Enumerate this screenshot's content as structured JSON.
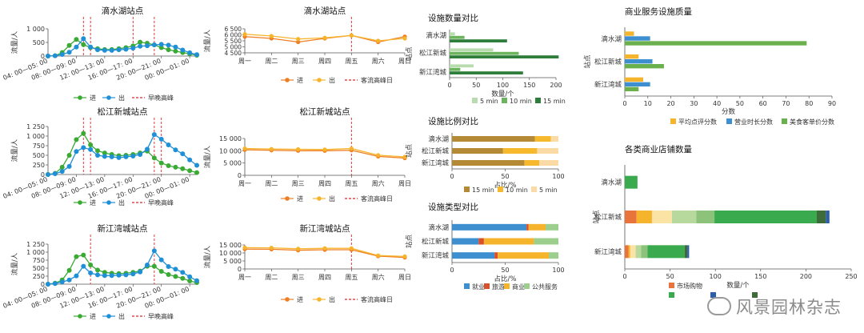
{
  "colors": {
    "in": "#3aaa35",
    "out": "#1f8fd6",
    "peak": "#d9262c",
    "orange_in": "#ef7d22",
    "orange_out": "#f6b42c",
    "min5": "#b8dcae",
    "min10": "#6cb45e",
    "min15": "#2e7d3a",
    "sh15": "#b58a37",
    "sh10": "#f6b92e",
    "sh5": "#fbdaa6",
    "employ": "#3d8fd0",
    "travel": "#d8502a",
    "commerce": "#f6b42c",
    "public": "#9ccf8d",
    "rating": "#f6b42c",
    "hours": "#3d8fd0",
    "price": "#6ab04c"
  },
  "watermark": "风景园林杂志",
  "legends": {
    "in": "进",
    "out": "出",
    "peak_flow": "早晚高峰",
    "peak_day": "客流高峰日",
    "min5": "5 min",
    "min10": "10 min",
    "min15": "15 min",
    "employ": "就业",
    "travel": "旅游",
    "commerce": "商业",
    "public": "公共服务",
    "rating": "平均点评分数",
    "hours": "营业时长分数",
    "price": "美食客单价分数",
    "shop_partial": "市场购物"
  },
  "chart_data": [
    {
      "id": "h1",
      "type": "line",
      "title": "滴水湖站点",
      "ylabel": "流量/人",
      "ylim": [
        0,
        1000
      ],
      "yticks": [
        {
          "v": 0,
          "t": "0"
        },
        {
          "v": 500,
          "t": "500"
        },
        {
          "v": 1000,
          "t": "1 000"
        }
      ],
      "xticks": [
        "04: 00—05: 00",
        "08: 00—09: 00",
        "12: 00—13: 00",
        "16: 00—17: 00",
        "20: 00—21: 00",
        "00: 00—01: 00"
      ],
      "series": [
        {
          "name": "进",
          "values": [
            0,
            10,
            130,
            390,
            610,
            420,
            310,
            270,
            240,
            240,
            270,
            310,
            370,
            510,
            470,
            410,
            310,
            230,
            180,
            130,
            80,
            30
          ]
        },
        {
          "name": "出",
          "values": [
            0,
            10,
            60,
            140,
            330,
            640,
            330,
            230,
            210,
            210,
            230,
            250,
            290,
            360,
            380,
            410,
            430,
            400,
            330,
            220,
            120,
            50
          ]
        }
      ],
      "peaks": [
        5,
        6,
        12,
        15
      ]
    },
    {
      "id": "h2",
      "type": "line",
      "title": "松江新城站点",
      "ylabel": "流量/人",
      "ylim": [
        0,
        1250
      ],
      "yticks": [
        {
          "v": 0,
          "t": "0"
        },
        {
          "v": 250,
          "t": "250"
        },
        {
          "v": 500,
          "t": "500"
        },
        {
          "v": 750,
          "t": "750"
        },
        {
          "v": 1000,
          "t": "1 000"
        },
        {
          "v": 1250,
          "t": "1 250"
        }
      ],
      "xticks": [
        "04: 00—05: 00",
        "08: 00—09: 00",
        "12: 00—13: 00",
        "16: 00—17: 00",
        "20: 00—21: 00",
        "00: 00—01: 00"
      ],
      "series": [
        {
          "name": "进",
          "values": [
            0,
            30,
            190,
            500,
            910,
            1070,
            770,
            620,
            560,
            520,
            490,
            500,
            520,
            560,
            610,
            430,
            300,
            230,
            190,
            150,
            100,
            50
          ]
        },
        {
          "name": "出",
          "values": [
            0,
            20,
            80,
            210,
            600,
            700,
            650,
            500,
            470,
            460,
            440,
            460,
            480,
            520,
            660,
            1040,
            920,
            770,
            640,
            540,
            380,
            240
          ]
        }
      ],
      "peaks": [
        5,
        6,
        15,
        16
      ]
    },
    {
      "id": "h3",
      "type": "line",
      "title": "新江湾城站点",
      "ylabel": "流量/人",
      "ylim": [
        0,
        1250
      ],
      "yticks": [
        {
          "v": 0,
          "t": "0"
        },
        {
          "v": 250,
          "t": "250"
        },
        {
          "v": 500,
          "t": "500"
        },
        {
          "v": 750,
          "t": "750"
        },
        {
          "v": 1000,
          "t": "1 000"
        },
        {
          "v": 1250,
          "t": "1 250"
        }
      ],
      "xticks": [
        "04: 00—05: 00",
        "08: 00—09: 00",
        "12: 00—13: 00",
        "16: 00—17: 00",
        "20: 00—21: 00",
        "00: 00—01: 00"
      ],
      "series": [
        {
          "name": "进",
          "values": [
            0,
            30,
            130,
            430,
            860,
            910,
            600,
            440,
            370,
            340,
            330,
            340,
            370,
            410,
            560,
            560,
            400,
            300,
            240,
            180,
            100,
            50
          ]
        },
        {
          "name": "出",
          "values": [
            0,
            20,
            70,
            130,
            260,
            560,
            350,
            290,
            270,
            270,
            280,
            290,
            320,
            380,
            600,
            1040,
            760,
            550,
            470,
            370,
            230,
            110
          ]
        }
      ],
      "peaks": [
        6,
        15
      ]
    },
    {
      "id": "w1",
      "type": "line",
      "title": "滴水湖站点",
      "ylabel": "流量/人",
      "ylim": [
        4500,
        6500
      ],
      "yticks": [
        {
          "v": 4500,
          "t": "4 500"
        },
        {
          "v": 5000,
          "t": "5 000"
        },
        {
          "v": 5500,
          "t": "5 500"
        },
        {
          "v": 6000,
          "t": "6 000"
        },
        {
          "v": 6500,
          "t": "6 500"
        }
      ],
      "xticks": [
        "周一",
        "周二",
        "周三",
        "周四",
        "周五",
        "周六",
        "周日"
      ],
      "series": [
        {
          "name": "进",
          "values": [
            5850,
            5700,
            5400,
            5700,
            5950,
            5400,
            5850
          ]
        },
        {
          "name": "出",
          "values": [
            6050,
            5900,
            5650,
            5750,
            5950,
            5500,
            5700
          ]
        }
      ],
      "peakday": 4
    },
    {
      "id": "w2",
      "type": "line",
      "title": "松江新城站点",
      "ylabel": "流量/人",
      "ylim": [
        0,
        15000
      ],
      "yticks": [
        {
          "v": 0,
          "t": "0"
        },
        {
          "v": 5000,
          "t": "5 000"
        },
        {
          "v": 10000,
          "t": "10 000"
        },
        {
          "v": 15000,
          "t": "15 000"
        }
      ],
      "xticks": [
        "周一",
        "周二",
        "周三",
        "周四",
        "周五",
        "周六",
        "周日"
      ],
      "series": [
        {
          "name": "进",
          "values": [
            10400,
            10200,
            10000,
            10000,
            10200,
            7700,
            7000
          ]
        },
        {
          "name": "出",
          "values": [
            10900,
            10700,
            10600,
            10500,
            10900,
            8200,
            7500
          ]
        }
      ],
      "peakday": 4
    },
    {
      "id": "w3",
      "type": "line",
      "title": "新江湾城站点",
      "ylabel": "流量/人",
      "ylim": [
        0,
        15000
      ],
      "yticks": [
        {
          "v": 0,
          "t": "0"
        },
        {
          "v": 5000,
          "t": "5 000"
        },
        {
          "v": 10000,
          "t": "10 000"
        },
        {
          "v": 15000,
          "t": "15 000"
        }
      ],
      "xticks": [
        "周一",
        "周二",
        "周三",
        "周四",
        "周五",
        "周六",
        "周日"
      ],
      "series": [
        {
          "name": "进",
          "values": [
            12400,
            12300,
            11700,
            12000,
            12000,
            8000,
            7200
          ]
        },
        {
          "name": "出",
          "values": [
            13300,
            13200,
            12600,
            12900,
            12900,
            8400,
            7800
          ]
        }
      ],
      "peakday": 4
    },
    {
      "id": "f1",
      "type": "bar",
      "orient": "h",
      "title": "设施数量对比",
      "xlabel": "数量/个",
      "ylabel": "站点",
      "categories": [
        "滴水湖",
        "松江新城",
        "新江湾城"
      ],
      "xlim": [
        0,
        200
      ],
      "xticks": [
        0,
        50,
        100,
        150,
        200
      ],
      "series": [
        {
          "name": "5 min",
          "values": [
            10,
            82,
            45
          ]
        },
        {
          "name": "10 min",
          "values": [
            28,
            130,
            20
          ]
        },
        {
          "name": "15 min",
          "values": [
            108,
            205,
            138
          ]
        }
      ]
    },
    {
      "id": "f2",
      "type": "bar",
      "orient": "h",
      "stacked": true,
      "title": "设施比例对比",
      "xlabel": "占比/%",
      "ylabel": "站点",
      "categories": [
        "滴水湖",
        "松江新城",
        "新江湾城"
      ],
      "xlim": [
        0,
        100
      ],
      "xticks": [
        0,
        50,
        100
      ],
      "series": [
        {
          "name": "15 min",
          "values": [
            78,
            48,
            68
          ]
        },
        {
          "name": "10 min",
          "values": [
            15,
            32,
            14
          ]
        },
        {
          "name": "5 min",
          "values": [
            7,
            20,
            18
          ]
        }
      ]
    },
    {
      "id": "f3",
      "type": "bar",
      "orient": "h",
      "stacked": true,
      "title": "设施类型对比",
      "xlabel": "占比/%",
      "ylabel": "站点",
      "categories": [
        "滴水湖",
        "松江新城",
        "新江湾城"
      ],
      "xlim": [
        0,
        100
      ],
      "xticks": [
        0,
        50,
        100
      ],
      "series": [
        {
          "name": "就业",
          "values": [
            70,
            25,
            40
          ]
        },
        {
          "name": "旅游",
          "values": [
            2,
            5,
            3
          ]
        },
        {
          "name": "商业",
          "values": [
            16,
            47,
            48
          ]
        },
        {
          "name": "公共服务",
          "values": [
            12,
            23,
            9
          ]
        }
      ]
    },
    {
      "id": "q1",
      "type": "bar",
      "orient": "h",
      "title": "商业服务设施质量",
      "xlabel": "分数",
      "ylabel": "站点",
      "categories": [
        "滴水湖",
        "松江新城",
        "新江湾城"
      ],
      "xlim": [
        0,
        90
      ],
      "xticks": [
        0,
        10,
        20,
        30,
        40,
        50,
        60,
        70,
        80,
        90
      ],
      "series": [
        {
          "name": "平均点评分数",
          "values": [
            4,
            6,
            8
          ]
        },
        {
          "name": "营业时长分数",
          "values": [
            11,
            12,
            11
          ]
        },
        {
          "name": "美食客单价分数",
          "values": [
            79,
            17,
            6
          ]
        }
      ]
    },
    {
      "id": "q2",
      "type": "bar",
      "orient": "h",
      "stacked": true,
      "title": "各类商业店铺数量",
      "xlabel": "数量/个",
      "ylabel": "站点",
      "categories": [
        "滴水湖",
        "松江新城",
        "新江湾城"
      ],
      "xlim": [
        0,
        250
      ],
      "xticks": [
        0,
        50,
        100,
        150,
        200,
        250
      ],
      "series": [
        {
          "name": "s1",
          "values": [
            0,
            13,
            4
          ]
        },
        {
          "name": "s2",
          "values": [
            0,
            17,
            2
          ]
        },
        {
          "name": "s3",
          "values": [
            0,
            22,
            6
          ]
        },
        {
          "name": "s4",
          "values": [
            0,
            27,
            6
          ]
        },
        {
          "name": "s5",
          "values": [
            0,
            20,
            7
          ]
        },
        {
          "name": "s6",
          "values": [
            14,
            113,
            41
          ]
        },
        {
          "name": "s7",
          "values": [
            0,
            10,
            3
          ]
        },
        {
          "name": "s8",
          "values": [
            0,
            4,
            2
          ]
        }
      ],
      "colors": [
        "#e8743b",
        "#f6b42c",
        "#fbe3a5",
        "#b7d99e",
        "#8cc27a",
        "#3aaa4f",
        "#3d6b3a",
        "#2b5fa8"
      ]
    }
  ]
}
